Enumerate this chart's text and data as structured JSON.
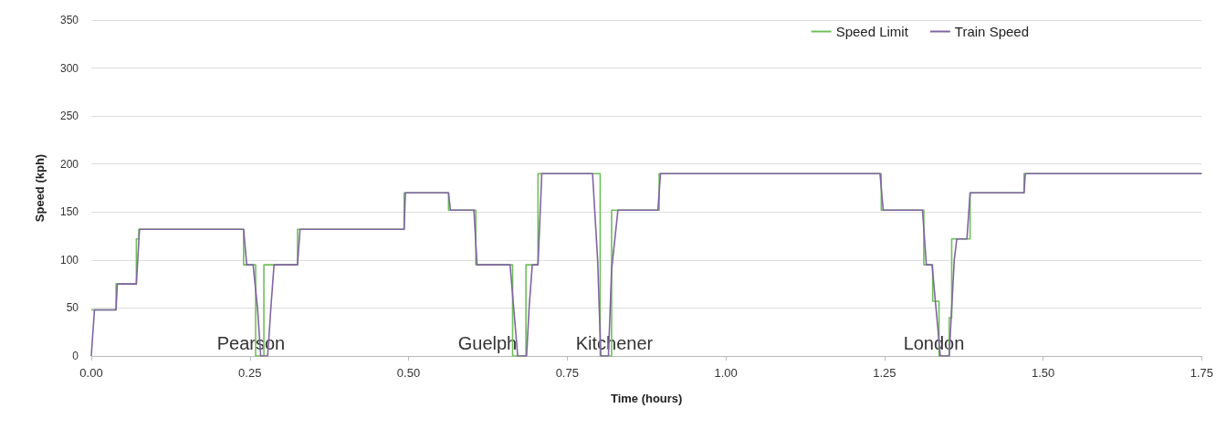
{
  "chart_data": {
    "type": "line",
    "xlabel": "Time (hours)",
    "ylabel": "Speed (kph)",
    "xlim": [
      0,
      1.75
    ],
    "xticks": [
      {
        "value": 0,
        "label": "0.00"
      },
      {
        "value": 0.25,
        "label": "0.25"
      },
      {
        "value": 0.5,
        "label": "0.50"
      },
      {
        "value": 0.75,
        "label": "0.75"
      },
      {
        "value": 1,
        "label": "1.00"
      },
      {
        "value": 1.25,
        "label": "1.25"
      },
      {
        "value": 1.5,
        "label": "1.50"
      },
      {
        "value": 1.75,
        "label": "1.75"
      }
    ],
    "ylim": [
      0,
      350
    ],
    "yticks": [
      0,
      50,
      100,
      150,
      200,
      250,
      300,
      350
    ],
    "grid": "y",
    "legend": "top right",
    "marker": "none",
    "line_style": "solid",
    "series": [
      {
        "name": "Speed Limit",
        "type": "step",
        "color": "#70c05a",
        "x": [
          0,
          0.039,
          0.071,
          0.075,
          0.24,
          0.259,
          0.272,
          0.325,
          0.493,
          0.563,
          0.606,
          0.664,
          0.685,
          0.704,
          0.802,
          0.82,
          0.895,
          1.245,
          1.312,
          1.326,
          1.336,
          1.352,
          1.356,
          1.385,
          1.47,
          1.75
        ],
        "values": [
          48,
          75,
          122,
          132,
          95,
          0,
          95,
          132,
          170,
          152,
          95,
          0,
          95,
          190,
          0,
          152,
          190,
          152,
          95,
          57,
          0,
          40,
          122,
          170,
          190,
          190
        ]
      },
      {
        "name": "Train Speed",
        "color": "#8064a2",
        "x": [
          0,
          0.005,
          0.039,
          0.041,
          0.071,
          0.076,
          0.24,
          0.245,
          0.255,
          0.262,
          0.267,
          0.278,
          0.283,
          0.288,
          0.325,
          0.329,
          0.493,
          0.495,
          0.563,
          0.566,
          0.603,
          0.608,
          0.66,
          0.667,
          0.672,
          0.686,
          0.69,
          0.695,
          0.704,
          0.71,
          0.79,
          0.798,
          0.803,
          0.815,
          0.82,
          0.83,
          0.893,
          0.897,
          1.243,
          1.248,
          1.31,
          1.316,
          1.325,
          1.334,
          1.338,
          1.352,
          1.36,
          1.364,
          1.38,
          1.385,
          1.47,
          1.472,
          1.75
        ],
        "values": [
          0,
          48,
          48,
          75,
          75,
          132,
          132,
          95,
          95,
          50,
          0,
          0,
          50,
          95,
          95,
          132,
          132,
          170,
          170,
          152,
          152,
          95,
          95,
          40,
          0,
          0,
          50,
          95,
          95,
          190,
          190,
          100,
          0,
          0,
          90,
          152,
          152,
          190,
          190,
          152,
          152,
          95,
          95,
          30,
          0,
          0,
          100,
          122,
          122,
          170,
          170,
          190,
          190
        ]
      }
    ],
    "annotations": [
      "Pearson",
      "Guelph",
      "Kitchener",
      "London"
    ]
  }
}
